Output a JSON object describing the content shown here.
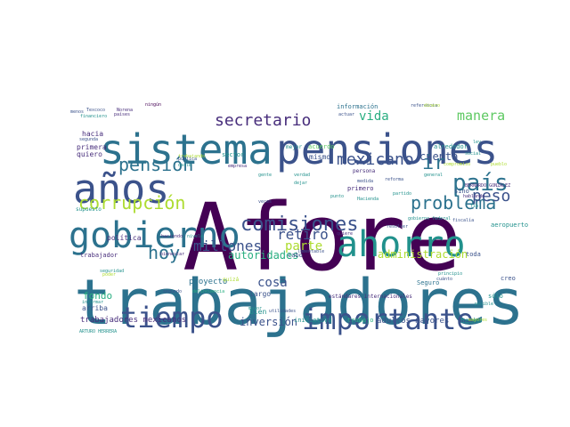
{
  "palette": {
    "dark_purple": "#440154",
    "purple": "#472d7b",
    "indigo": "#3b528b",
    "blue": "#2c728e",
    "teal": "#21918c",
    "green": "#28ae80",
    "light_green": "#5ec962",
    "lime": "#addc30",
    "yellow": "#d8e219"
  },
  "words": [
    {
      "text": "Afore",
      "color": "dark_purple"
    },
    {
      "text": "trabajadores",
      "color": "blue"
    },
    {
      "text": "sistema",
      "color": "blue"
    },
    {
      "text": "pensiones",
      "color": "indigo"
    },
    {
      "text": "años",
      "color": "indigo"
    },
    {
      "text": "gobierno",
      "color": "blue"
    },
    {
      "text": "ahorro",
      "color": "teal"
    },
    {
      "text": "tiempo",
      "color": "indigo"
    },
    {
      "text": "importante",
      "color": "indigo"
    },
    {
      "text": "comisiones",
      "color": "indigo"
    },
    {
      "text": "país",
      "color": "blue"
    },
    {
      "text": "problema",
      "color": "blue"
    },
    {
      "text": "pensión",
      "color": "blue"
    },
    {
      "text": "corrupción",
      "color": "lime"
    },
    {
      "text": "secretario",
      "color": "purple"
    },
    {
      "text": "mexicano",
      "color": "indigo"
    },
    {
      "text": "hoy",
      "color": "blue"
    },
    {
      "text": "millones",
      "color": "indigo"
    },
    {
      "text": "retiro",
      "color": "indigo"
    },
    {
      "text": "ir",
      "color": "blue"
    },
    {
      "text": "peso",
      "color": "indigo"
    },
    {
      "text": "manera",
      "color": "light_green"
    },
    {
      "text": "parte",
      "color": "lime"
    },
    {
      "text": "cosa",
      "color": "indigo"
    },
    {
      "text": "vida",
      "color": "green"
    },
    {
      "text": "cuenta",
      "color": "indigo"
    },
    {
      "text": "autoridades",
      "color": "green"
    },
    {
      "text": "administración",
      "color": "lime"
    },
    {
      "text": "inversión",
      "color": "indigo"
    },
    {
      "text": "fondo",
      "color": "green"
    },
    {
      "text": "trabajadores mexicanos",
      "color": "purple"
    },
    {
      "text": "adultos mayores",
      "color": "indigo"
    },
    {
      "text": "proyecto",
      "color": "blue"
    },
    {
      "text": "mismo",
      "color": "indigo"
    },
    {
      "text": "política",
      "color": "purple"
    },
    {
      "text": "largo",
      "color": "indigo"
    },
    {
      "text": "bien",
      "color": "teal"
    },
    {
      "text": "arriba",
      "color": "indigo"
    },
    {
      "text": "hacia",
      "color": "purple"
    },
    {
      "text": "primera",
      "color": "purple"
    },
    {
      "text": "quiero",
      "color": "purple"
    },
    {
      "text": "sector",
      "color": "teal"
    },
    {
      "text": "primero",
      "color": "purple"
    },
    {
      "text": "información",
      "color": "blue"
    },
    {
      "text": "acuerdo",
      "color": "light_green"
    },
    {
      "text": "mejor",
      "color": "teal"
    },
    {
      "text": "hecho",
      "color": "teal"
    },
    {
      "text": "trabajo",
      "color": "green"
    },
    {
      "text": "iniciativa",
      "color": "teal"
    },
    {
      "text": "toda",
      "color": "indigo"
    },
    {
      "text": "Seguro",
      "color": "blue"
    },
    {
      "text": "sólo",
      "color": "teal"
    },
    {
      "text": "creo",
      "color": "indigo"
    },
    {
      "text": "aeropuerto",
      "color": "teal"
    },
    {
      "text": "alrededor",
      "color": "teal"
    },
    {
      "text": "sino",
      "color": "indigo"
    },
    {
      "text": "cabo",
      "color": "indigo"
    },
    {
      "text": "trabajador",
      "color": "purple"
    },
    {
      "text": "quizá",
      "color": "lime"
    },
    {
      "text": "gobierno federal",
      "color": "teal"
    },
    {
      "text": "estándares internacionales",
      "color": "purple"
    },
    {
      "text": "persona",
      "color": "purple"
    },
    {
      "text": "general",
      "color": "teal"
    },
    {
      "text": "compromiso",
      "color": "lime"
    },
    {
      "text": "Texcoco",
      "color": "indigo"
    },
    {
      "text": "Norena",
      "color": "purple"
    },
    {
      "text": "menos",
      "color": "indigo"
    },
    {
      "text": "ningún",
      "color": "dark_purple"
    },
    {
      "text": "financiero",
      "color": "teal"
    },
    {
      "text": "países",
      "color": "purple"
    },
    {
      "text": "referencia",
      "color": "indigo"
    },
    {
      "text": "actuar",
      "color": "indigo"
    },
    {
      "text": "segunda",
      "color": "indigo"
    },
    {
      "text": "trabajando",
      "color": "lime"
    },
    {
      "text": "pública",
      "color": "indigo"
    },
    {
      "text": "darle",
      "color": "teal"
    },
    {
      "text": "empresa",
      "color": "purple"
    },
    {
      "text": "gente",
      "color": "teal"
    },
    {
      "text": "verdad",
      "color": "teal"
    },
    {
      "text": "dejar",
      "color": "teal"
    },
    {
      "text": "medida",
      "color": "indigo"
    },
    {
      "text": "Hacienda",
      "color": "teal"
    },
    {
      "text": "punto",
      "color": "teal"
    },
    {
      "text": "lamentable",
      "color": "indigo"
    },
    {
      "text": "quiere",
      "color": "purple"
    },
    {
      "text": "social",
      "color": "teal"
    },
    {
      "text": "pueblo",
      "color": "lime"
    },
    {
      "text": "hablando",
      "color": "purple"
    },
    {
      "text": "BERNARDO GONZÁLEZ",
      "color": "purple"
    },
    {
      "text": "reforma",
      "color": "indigo"
    },
    {
      "text": "partido",
      "color": "teal"
    },
    {
      "text": "resolver",
      "color": "indigo"
    },
    {
      "text": "fiscalía",
      "color": "indigo"
    },
    {
      "text": "supuesto",
      "color": "teal"
    },
    {
      "text": "haciendo",
      "color": "purple"
    },
    {
      "text": "nivele",
      "color": "teal"
    },
    {
      "text": "bienestar",
      "color": "purple"
    },
    {
      "text": "seguridad",
      "color": "teal"
    },
    {
      "text": "poder",
      "color": "lime"
    },
    {
      "text": "informar",
      "color": "teal"
    },
    {
      "text": "segundo",
      "color": "indigo"
    },
    {
      "text": "delincuencia",
      "color": "green"
    },
    {
      "text": "mayor",
      "color": "teal"
    },
    {
      "text": "utilidades",
      "color": "indigo"
    },
    {
      "text": "principio",
      "color": "teal"
    },
    {
      "text": "cuánto",
      "color": "indigo"
    },
    {
      "text": "mayores",
      "color": "lime"
    },
    {
      "text": "ARTURO HERRERA",
      "color": "teal"
    },
    {
      "text": "posible",
      "color": "teal"
    },
    {
      "text": "veces",
      "color": "indigo"
    },
    {
      "text": "ley",
      "color": "teal"
    },
    {
      "text": "fin",
      "color": "teal"
    },
    {
      "text": "dinero",
      "color": "lime"
    }
  ]
}
